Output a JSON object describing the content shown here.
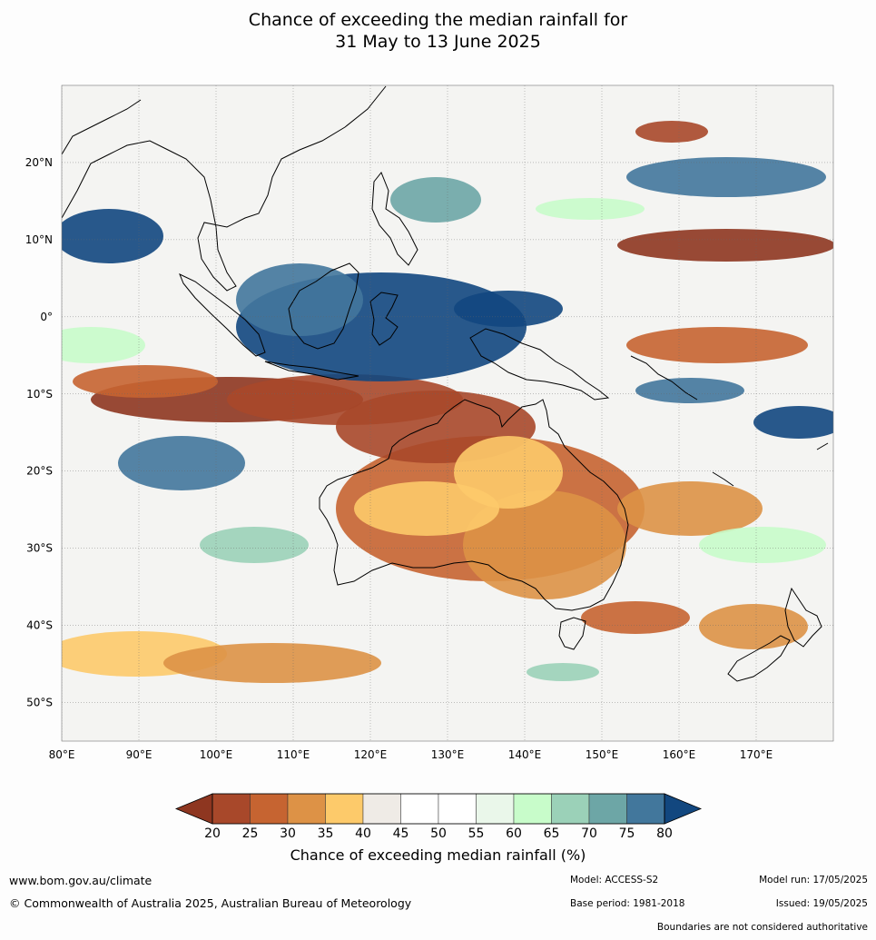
{
  "title": {
    "line1": "Chance of exceeding the median rainfall for",
    "line2": "31 May to 13 June 2025"
  },
  "map": {
    "region": "Australia and surrounding Indo-Pacific",
    "lon_labels": [
      "80°E",
      "90°E",
      "100°E",
      "110°E",
      "120°E",
      "130°E",
      "140°E",
      "150°E",
      "160°E",
      "170°E"
    ],
    "lat_labels": [
      "20°N",
      "10°N",
      "0°",
      "10°S",
      "20°S",
      "30°S",
      "40°S",
      "50°S"
    ],
    "lon_range": [
      80,
      180
    ],
    "lat_range": [
      -55,
      30
    ],
    "gridlines": true
  },
  "colorbar": {
    "label": "Chance of exceeding median rainfall (%)",
    "ticks": [
      "20",
      "25",
      "30",
      "35",
      "40",
      "45",
      "50",
      "55",
      "60",
      "65",
      "70",
      "75",
      "80"
    ],
    "colors": [
      "#8e3620",
      "#a8482a",
      "#c66431",
      "#dd9246",
      "#fdca6a",
      "#efebe6",
      "#ffffff",
      "#ffffff",
      "#eaf7ea",
      "#c8fcca",
      "#9bd1b8",
      "#6da6a6",
      "#42779c",
      "#12477f"
    ],
    "extend": "both"
  },
  "footer": {
    "website": "www.bom.gov.au/climate",
    "copyright": "© Commonwealth of Australia 2025, Australian Bureau of Meteorology",
    "model": "Model: ACCESS-S2",
    "base_period": "Base period: 1981-2018",
    "model_run": "Model run: 17/05/2025",
    "issued": "Issued: 19/05/2025",
    "disclaimer": "Boundaries are not considered authoritative"
  }
}
